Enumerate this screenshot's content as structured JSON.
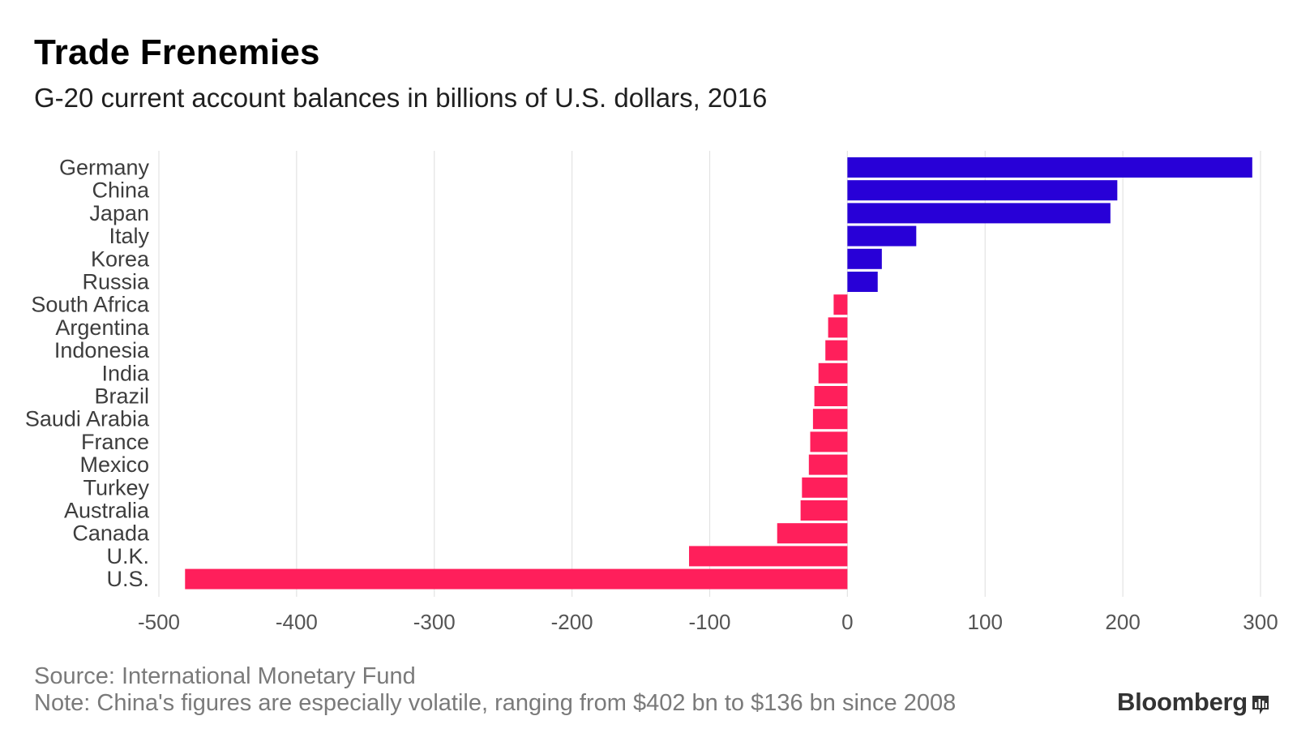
{
  "header": {
    "title": "Trade Frenemies",
    "subtitle": "G-20 current account balances in billions of U.S. dollars, 2016"
  },
  "footer": {
    "source": "Source: International Monetary Fund",
    "note": "Note: China's figures are especially volatile, ranging from $402 bn to $136 bn since 2008",
    "brand": "Bloomberg",
    "brand_icon": "bloomberg-chart-icon"
  },
  "colors": {
    "positive": "#2800d7",
    "negative": "#ff1f5b",
    "grid": "#e3e3e3",
    "label": "#3d3d3d",
    "tick": "#555555"
  },
  "chart_data": {
    "type": "bar",
    "orientation": "horizontal",
    "categories": [
      "Germany",
      "China",
      "Japan",
      "Italy",
      "Korea",
      "Russia",
      "South Africa",
      "Argentina",
      "Indonesia",
      "India",
      "Brazil",
      "Saudi Arabia",
      "France",
      "Mexico",
      "Turkey",
      "Australia",
      "Canada",
      "U.K.",
      "U.S."
    ],
    "values": [
      294,
      196,
      191,
      50,
      25,
      22,
      -10,
      -14,
      -16,
      -21,
      -24,
      -25,
      -27,
      -28,
      -33,
      -34,
      -51,
      -115,
      -481
    ],
    "title": "Trade Frenemies",
    "subtitle": "G-20 current account balances in billions of U.S. dollars, 2016",
    "xlim": [
      -500,
      300
    ],
    "xticks": [
      -500,
      -400,
      -300,
      -200,
      -100,
      0,
      100,
      200,
      300
    ],
    "xtick_labels": [
      "-500",
      "-400",
      "-300",
      "-200",
      "-100",
      "0",
      "100",
      "200",
      "300"
    ],
    "grid": "vertical",
    "legend": "none"
  }
}
